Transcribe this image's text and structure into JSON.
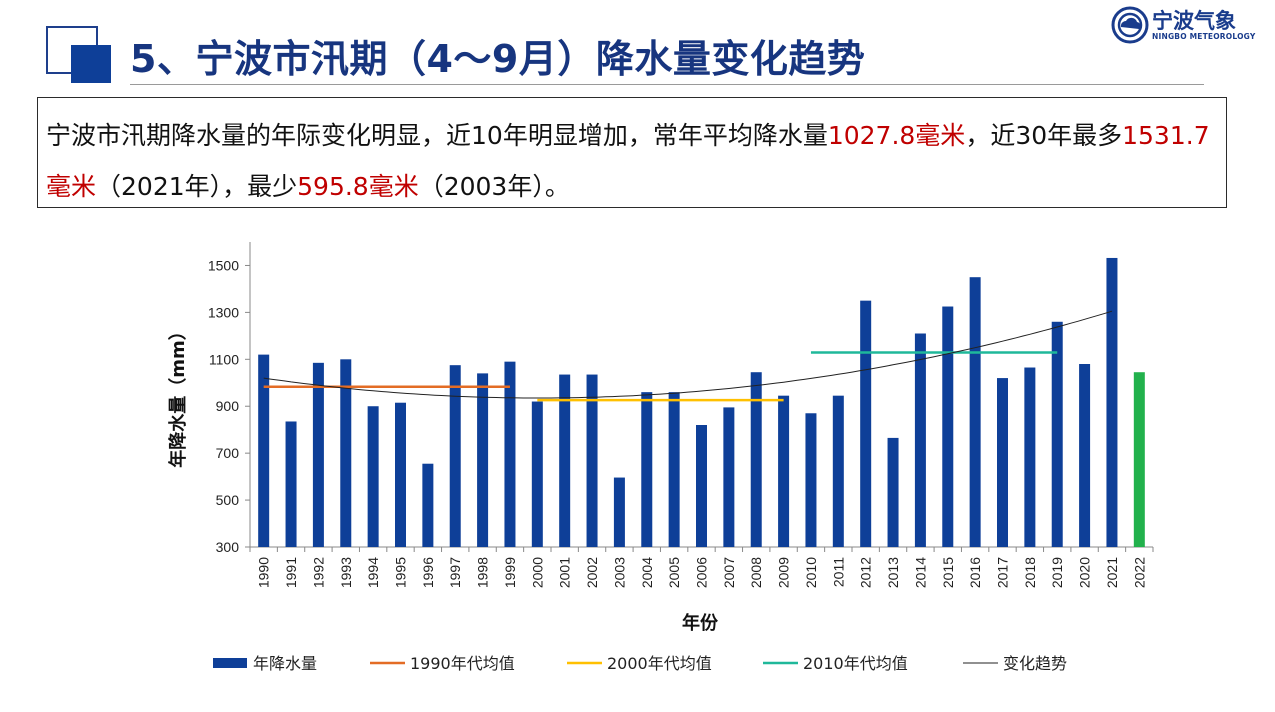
{
  "slide": {
    "title": "5、宁波市汛期（4～9月）降水量变化趋势",
    "logo_name": "宁波气象",
    "logo_sub": "NINGBO METEOROLOGY",
    "desc": {
      "p1": "宁波市汛期降水量的年际变化明显，近10年明显增加，常年平均降水量",
      "v1": "1027.8毫米",
      "p2": "，近30年最多",
      "v2": "1531.7毫米",
      "p3": "（2021年），最少",
      "v3": "595.8毫米",
      "p4": "（2003年）。"
    }
  },
  "colors": {
    "title": "#17357f",
    "bar": "#0e3f98",
    "bar_current": "#22b14c",
    "avg_1990s": "#e36c25",
    "avg_2000s": "#ffc000",
    "avg_2010s": "#1fb89a",
    "trend": "#222222",
    "highlight_text": "#c00000"
  },
  "chart_data": {
    "type": "bar",
    "xlabel": "年份",
    "ylabel": "年降水量（mm）",
    "ylim": [
      300,
      1600
    ],
    "yticks": [
      300,
      500,
      700,
      900,
      1100,
      1300,
      1500
    ],
    "categories": [
      "1990",
      "1991",
      "1992",
      "1993",
      "1994",
      "1995",
      "1996",
      "1997",
      "1998",
      "1999",
      "2000",
      "2001",
      "2002",
      "2003",
      "2004",
      "2005",
      "2006",
      "2007",
      "2008",
      "2009",
      "2010",
      "2011",
      "2012",
      "2013",
      "2014",
      "2015",
      "2016",
      "2017",
      "2018",
      "2019",
      "2020",
      "2021",
      "2022"
    ],
    "series": [
      {
        "name": "年降水量",
        "kind": "bar",
        "values": [
          1120,
          835,
          1085,
          1100,
          900,
          915,
          655,
          1075,
          1040,
          1090,
          920,
          1035,
          1035,
          596,
          960,
          960,
          820,
          895,
          1045,
          945,
          870,
          945,
          1350,
          765,
          1210,
          1325,
          1450,
          1020,
          1065,
          1260,
          1080,
          1532,
          1045
        ],
        "highlight_last": true
      },
      {
        "name": "1990年代均值",
        "kind": "hline",
        "value": 983,
        "from": "1990",
        "to": "1999"
      },
      {
        "name": "2000年代均值",
        "kind": "hline",
        "value": 926,
        "from": "2000",
        "to": "2009"
      },
      {
        "name": "2010年代均值",
        "kind": "hline",
        "value": 1129,
        "from": "2010",
        "to": "2019"
      },
      {
        "name": "变化趋势",
        "kind": "trend",
        "x": [
          "1990",
          "2021"
        ],
        "values_at": {
          "1990": 1020,
          "2000": 935,
          "2010": 1015,
          "2021": 1305
        }
      }
    ],
    "legend_position": "bottom",
    "grid": false
  }
}
